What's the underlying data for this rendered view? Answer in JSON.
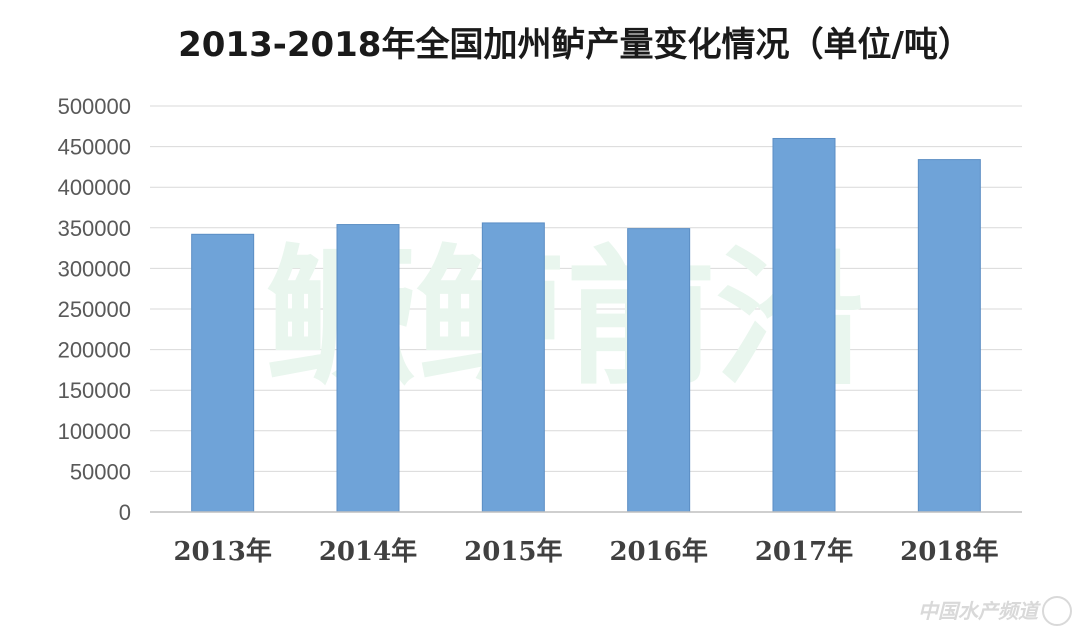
{
  "chart_data": {
    "type": "bar",
    "title": "2013-2018年全国加州鲈产量变化情况（单位/吨）",
    "categories": [
      "2013年",
      "2014年",
      "2015年",
      "2016年",
      "2017年",
      "2018年"
    ],
    "values": [
      342000,
      354000,
      356000,
      349000,
      460000,
      434000
    ],
    "ylim": [
      0,
      500000
    ],
    "yticks": [
      0,
      50000,
      100000,
      150000,
      200000,
      250000,
      300000,
      350000,
      400000,
      450000,
      500000
    ],
    "xlabel": "",
    "ylabel": "",
    "grid": true,
    "legend": "none",
    "bar_color": "#6fa3d8",
    "bar_edge_color": "#5b8ec4"
  },
  "watermark": {
    "text": "鳜鲈前沿",
    "color": "#e9f6ee"
  },
  "corner_watermark": {
    "text": "中国水产频道"
  }
}
